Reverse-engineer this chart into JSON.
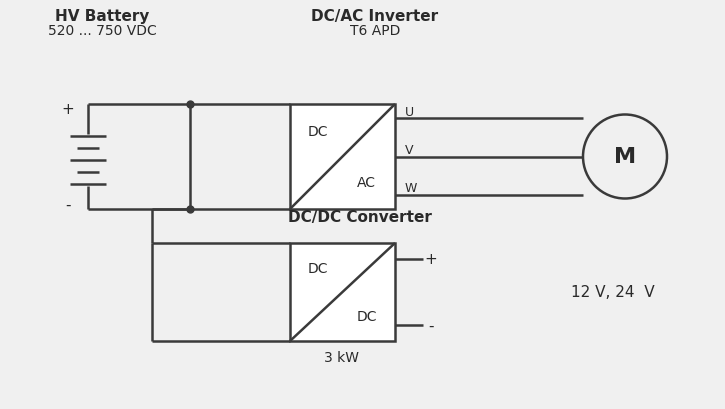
{
  "bg_color": "#f0f0f0",
  "line_color": "#3a3a3a",
  "text_color": "#2a2a2a",
  "lw": 1.8,
  "title_hv_battery": "HV Battery",
  "title_hv_voltage": "520 ... 750 VDC",
  "title_inverter": "DC/AC Inverter",
  "title_t6apd": "T6 APD",
  "title_converter": "DC/DC Converter",
  "title_3kw": "3 kW",
  "title_voltage": "12 V, 24  V",
  "label_dc_top": "DC",
  "label_ac": "AC",
  "label_dc_bot1": "DC",
  "label_dc_bot2": "DC",
  "label_u": "U",
  "label_v": "V",
  "label_w": "W",
  "label_plus_bat": "+",
  "label_minus_bat": "-",
  "label_plus_out": "+",
  "label_minus_out": "-",
  "label_M": "M"
}
